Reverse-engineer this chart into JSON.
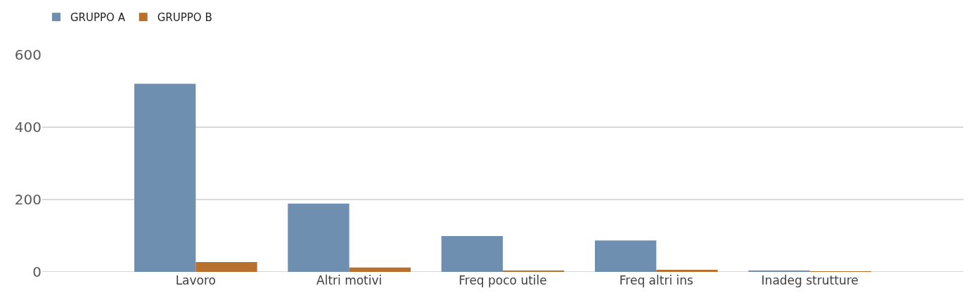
{
  "chart_data": {
    "type": "bar",
    "categories": [
      "Lavoro",
      "Altri motivi",
      "Freq poco utile",
      "Freq altri ins",
      "Inadeg strutture"
    ],
    "series": [
      {
        "name": "GRUPPO A",
        "color": "#6f8fb0",
        "values": [
          520,
          189,
          99,
          87,
          4
        ]
      },
      {
        "name": "GRUPPO B",
        "color": "#b8702f",
        "values": [
          27,
          12,
          2,
          6,
          1
        ]
      }
    ],
    "ylim": [
      0,
      600
    ],
    "yticks": [
      0,
      200,
      400,
      600
    ],
    "grid": "y",
    "legend": "top left"
  }
}
